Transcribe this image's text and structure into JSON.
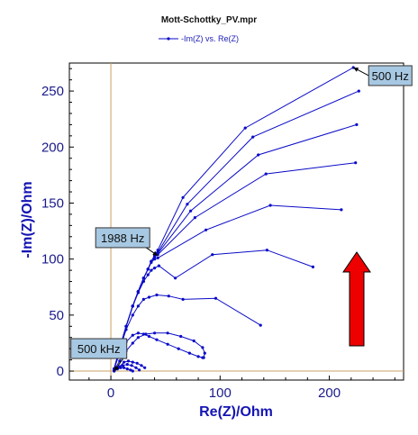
{
  "chart_data": {
    "type": "line",
    "title": "Mott-Schottky_PV.mpr",
    "xlabel": "Re(Z)/Ohm",
    "ylabel": "-Im(Z)/Ohm",
    "xlim": [
      -38,
      268
    ],
    "ylim": [
      -8,
      275
    ],
    "xticks": [
      0,
      100,
      200
    ],
    "yticks": [
      0,
      50,
      100,
      150,
      200,
      250
    ],
    "legend": {
      "label": "-Im(Z) vs. Re(Z)",
      "placement": "top-center"
    },
    "grid": false,
    "colors": {
      "series": "#0a0ac8",
      "axes_zero": "#c8a064",
      "ticks": "#1a1a8c",
      "arrow_fill": "#ee0000",
      "annotation_box": "#a7c8e2"
    },
    "series": [
      {
        "x": [
          3,
          8,
          14,
          20,
          25,
          30,
          34,
          37,
          40,
          43,
          66,
          123,
          222
        ],
        "y": [
          2,
          20,
          40,
          58,
          71,
          83,
          91,
          98,
          103,
          108,
          155,
          217,
          271
        ]
      },
      {
        "x": [
          3,
          8,
          14,
          20,
          25,
          30,
          34,
          37,
          40,
          43,
          70,
          130,
          227
        ],
        "y": [
          2,
          20,
          40,
          58,
          71,
          83,
          91,
          98,
          103,
          106,
          149,
          209,
          250
        ]
      },
      {
        "x": [
          3,
          8,
          14,
          20,
          25,
          30,
          34,
          37,
          40,
          43,
          73,
          135,
          225
        ],
        "y": [
          2,
          20,
          40,
          58,
          71,
          83,
          91,
          98,
          103,
          105,
          143,
          193,
          220
        ]
      },
      {
        "x": [
          3,
          8,
          14,
          20,
          25,
          30,
          34,
          37,
          40,
          43,
          77,
          142,
          224
        ],
        "y": [
          2,
          20,
          40,
          58,
          71,
          83,
          91,
          98,
          102,
          104,
          137,
          176,
          186
        ]
      },
      {
        "x": [
          3,
          8,
          14,
          20,
          25,
          30,
          34,
          37,
          40,
          43,
          87,
          146,
          211
        ],
        "y": [
          2,
          20,
          40,
          58,
          71,
          83,
          91,
          97,
          100,
          101,
          126,
          148,
          144
        ]
      },
      {
        "x": [
          3,
          8,
          14,
          20,
          25,
          30,
          34,
          37,
          40,
          44,
          59,
          93,
          143,
          185
        ],
        "y": [
          2,
          20,
          40,
          58,
          70,
          80,
          86,
          90,
          92,
          94,
          83,
          104,
          108,
          93
        ]
      },
      {
        "x": [
          3,
          8,
          14,
          20,
          25,
          30,
          35,
          42,
          53,
          66,
          96,
          137
        ],
        "y": [
          2,
          19,
          37,
          50,
          58,
          64,
          66,
          68,
          67,
          64,
          65,
          41
        ]
      },
      {
        "x": [
          3,
          8,
          14,
          20,
          25,
          30,
          35,
          42,
          52,
          62,
          72,
          80,
          84
        ],
        "y": [
          2,
          16,
          26,
          32,
          34,
          33,
          31,
          28,
          24,
          20,
          16,
          13,
          12
        ]
      },
      {
        "x": [
          3,
          8,
          14,
          20,
          25,
          32,
          40,
          52,
          64,
          76,
          84,
          86,
          85
        ],
        "y": [
          1,
          9,
          18,
          25,
          30,
          33,
          34,
          34,
          31,
          27,
          21,
          16,
          12
        ]
      },
      {
        "x": [
          3,
          8,
          12,
          16,
          20,
          24,
          28,
          31
        ],
        "y": [
          1,
          4,
          8,
          9,
          8,
          7,
          5,
          3
        ]
      },
      {
        "x": [
          3,
          7,
          11,
          15,
          19,
          23,
          26
        ],
        "y": [
          0,
          3,
          5,
          6,
          5,
          3,
          1
        ]
      },
      {
        "x": [
          3,
          6,
          9,
          12,
          15,
          18,
          20
        ],
        "y": [
          0,
          2,
          3,
          3,
          2,
          1,
          0
        ]
      }
    ],
    "annotations": [
      {
        "text": "500 Hz",
        "x": 222,
        "y": 271
      },
      {
        "text": "1988 Hz",
        "x": 43,
        "y": 103
      },
      {
        "text": "500 kHz",
        "x": 3,
        "y": 0
      }
    ]
  }
}
